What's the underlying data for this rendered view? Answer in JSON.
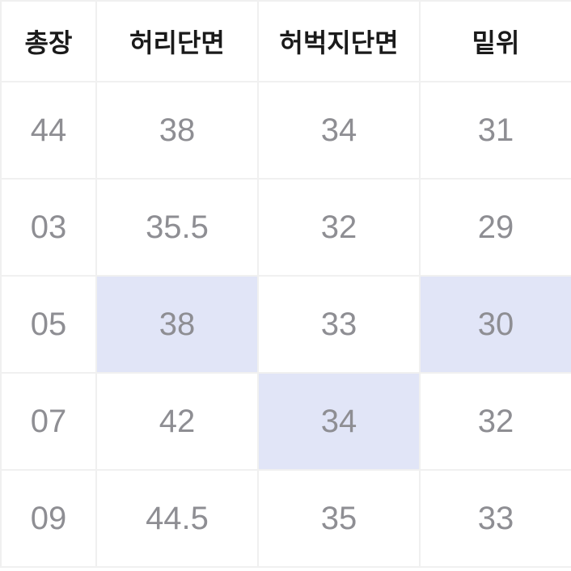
{
  "table": {
    "type": "table",
    "background_color": "#ffffff",
    "border_color": "#f0f0f0",
    "highlight_color": "#e1e5f7",
    "header_text_color": "#1a1a1a",
    "data_text_color": "#8e8e93",
    "header_fontsize": 32,
    "data_fontsize": 40,
    "columns": [
      {
        "label": "총장",
        "key": "total_length",
        "partial": "left"
      },
      {
        "label": "허리단면",
        "key": "waist"
      },
      {
        "label": "허벅지단면",
        "key": "thigh"
      },
      {
        "label": "밑위",
        "key": "rise",
        "partial": "right"
      }
    ],
    "rows": [
      {
        "cells": [
          {
            "value": "44",
            "highlight": false
          },
          {
            "value": "38",
            "highlight": false
          },
          {
            "value": "34",
            "highlight": false
          },
          {
            "value": "31",
            "highlight": false
          }
        ]
      },
      {
        "cells": [
          {
            "value": "03",
            "highlight": false
          },
          {
            "value": "35.5",
            "highlight": false
          },
          {
            "value": "32",
            "highlight": false
          },
          {
            "value": "29",
            "highlight": false
          }
        ]
      },
      {
        "cells": [
          {
            "value": "05",
            "highlight": false
          },
          {
            "value": "38",
            "highlight": true
          },
          {
            "value": "33",
            "highlight": false
          },
          {
            "value": "30",
            "highlight": true
          }
        ]
      },
      {
        "cells": [
          {
            "value": "07",
            "highlight": false
          },
          {
            "value": "42",
            "highlight": false
          },
          {
            "value": "34",
            "highlight": true
          },
          {
            "value": "32",
            "highlight": false
          }
        ]
      },
      {
        "cells": [
          {
            "value": "09",
            "highlight": false
          },
          {
            "value": "44.5",
            "highlight": false
          },
          {
            "value": "35",
            "highlight": false
          },
          {
            "value": "33",
            "highlight": false
          }
        ]
      }
    ]
  }
}
